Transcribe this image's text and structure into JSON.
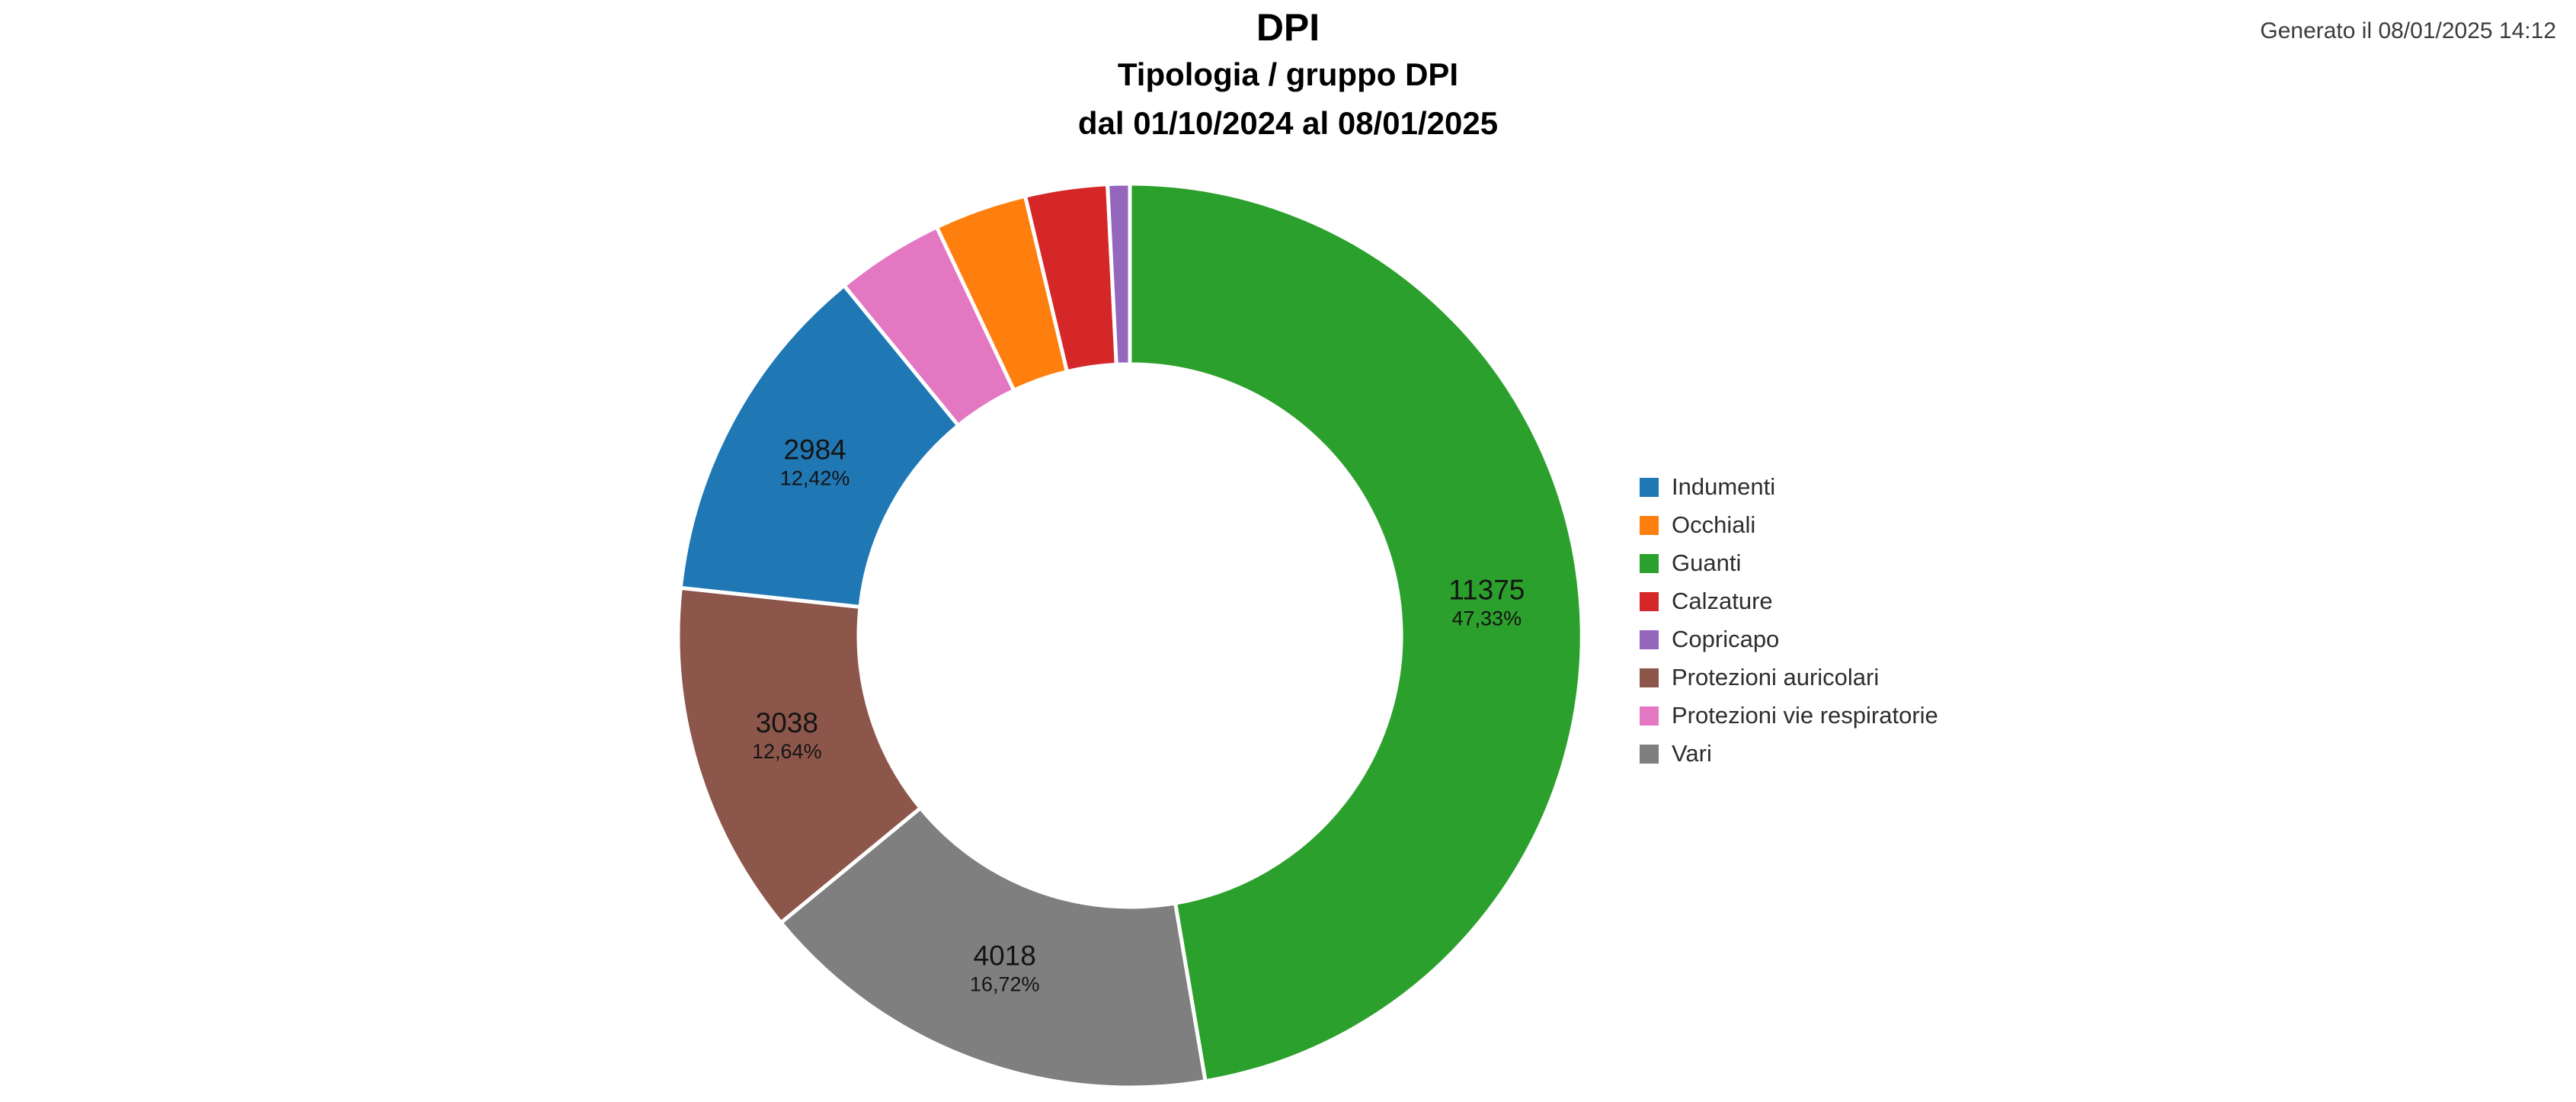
{
  "header": {
    "title": "DPI",
    "subtitle1": "Tipologia / gruppo DPI",
    "subtitle2": "dal 01/10/2024 al 08/01/2025",
    "generated": "Generato il 08/01/2025 14:12"
  },
  "chart_data": {
    "type": "pie",
    "subtype": "donut",
    "title": "DPI",
    "subtitle": "Tipologia / gruppo DPI",
    "period": "dal 01/10/2024 al 08/01/2025",
    "legend_position": "right",
    "direction": "clockwise",
    "start_angle": "12-oclock",
    "inner_radius_ratio": 0.6,
    "label_min_pct": 5,
    "series": [
      {
        "name": "Indumenti",
        "value": 2984,
        "value_label": "2984",
        "pct_label": "12,42%",
        "color": "#1f77b4"
      },
      {
        "name": "Occhiali",
        "value": 795,
        "estimated": true,
        "color": "#ff7f0e"
      },
      {
        "name": "Guanti",
        "value": 11375,
        "value_label": "11375",
        "pct_label": "47,33%",
        "color": "#2ca02c"
      },
      {
        "name": "Calzature",
        "value": 705,
        "estimated": true,
        "color": "#d62728"
      },
      {
        "name": "Copricapo",
        "value": 190,
        "estimated": true,
        "color": "#9467bd"
      },
      {
        "name": "Protezioni auricolari",
        "value": 3038,
        "value_label": "3038",
        "pct_label": "12,64%",
        "color": "#8c564b"
      },
      {
        "name": "Protezioni vie respiratorie",
        "value": 930,
        "estimated": true,
        "color": "#e377c2"
      },
      {
        "name": "Vari",
        "value": 4018,
        "value_label": "4018",
        "pct_label": "16,72%",
        "color": "#7f7f7f"
      }
    ],
    "draw_order": [
      "Guanti",
      "Vari",
      "Protezioni auricolari",
      "Indumenti",
      "Protezioni vie respiratorie",
      "Occhiali",
      "Calzature",
      "Copricapo"
    ]
  }
}
